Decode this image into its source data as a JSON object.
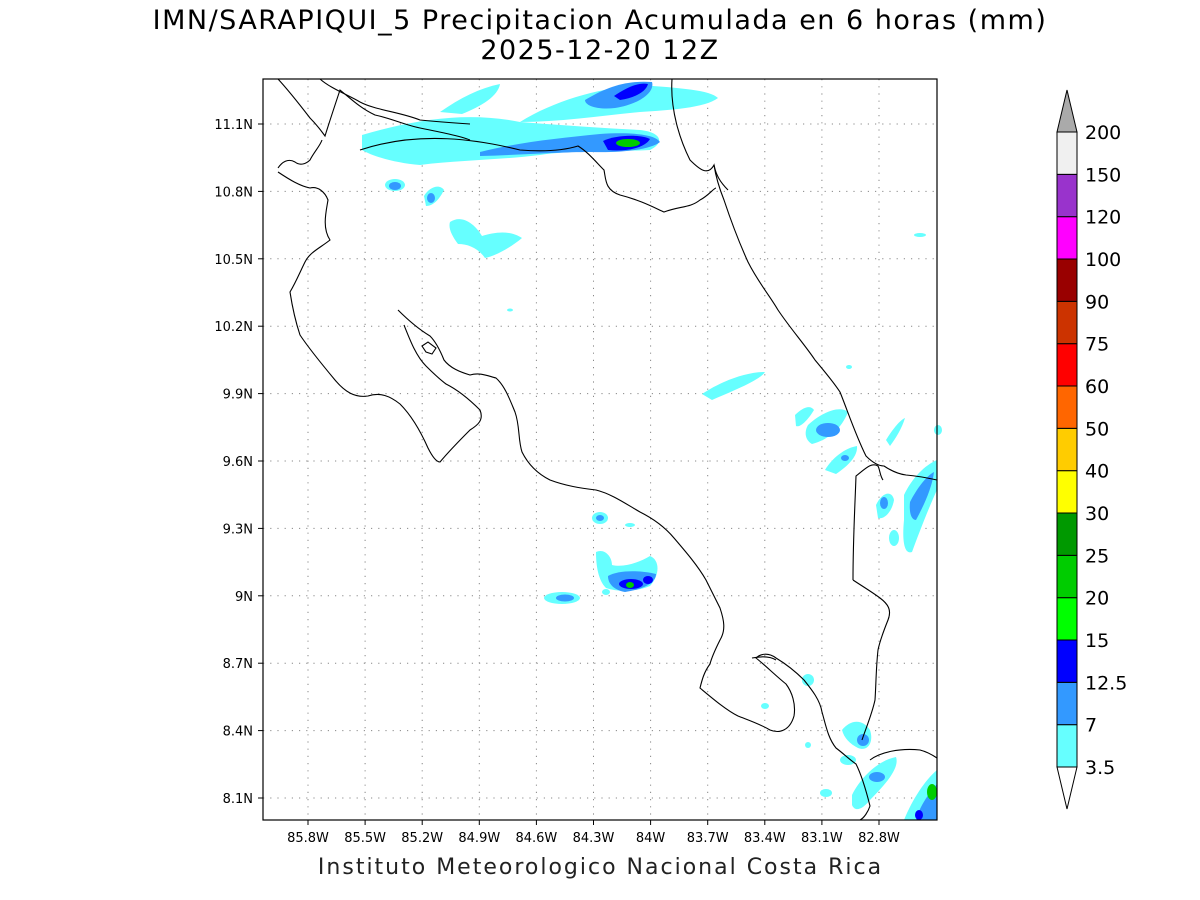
{
  "title": {
    "line1": "IMN/SARAPIQUI_5 Precipitacion Acumulada en 6 horas (mm)",
    "line2": "2025-12-20 12Z"
  },
  "footer": "Instituto Meteorologico Nacional Costa Rica",
  "map": {
    "lon_range": [
      -86.0,
      -83.0
    ],
    "lon_labels": [
      "85.8W",
      "85.5W",
      "85.2W",
      "84.9W",
      "84.6W",
      "84.3W",
      "84W",
      "83.7W",
      "83.4W",
      "83.1W",
      "82.8W"
    ],
    "lat_labels": [
      "11.1N",
      "10.8N",
      "10.5N",
      "10.2N",
      "9.9N",
      "9.6N",
      "9.3N",
      "9N",
      "8.7N",
      "8.4N",
      "8.1N"
    ],
    "gridlines": "dotted"
  },
  "legend": {
    "levels": [
      "3.5",
      "7",
      "12.5",
      "15",
      "20",
      "25",
      "30",
      "40",
      "50",
      "60",
      "75",
      "90",
      "100",
      "120",
      "150",
      "200"
    ],
    "colors": [
      "#ffffff",
      "#66ffff",
      "#3399ff",
      "#0000ff",
      "#00ff00",
      "#00cc00",
      "#009900",
      "#ffff00",
      "#ffcc00",
      "#ff6600",
      "#ff0000",
      "#cc3300",
      "#990000",
      "#ff00ff",
      "#9933cc",
      "#f0f0f0",
      "#aaaaaa"
    ]
  }
}
